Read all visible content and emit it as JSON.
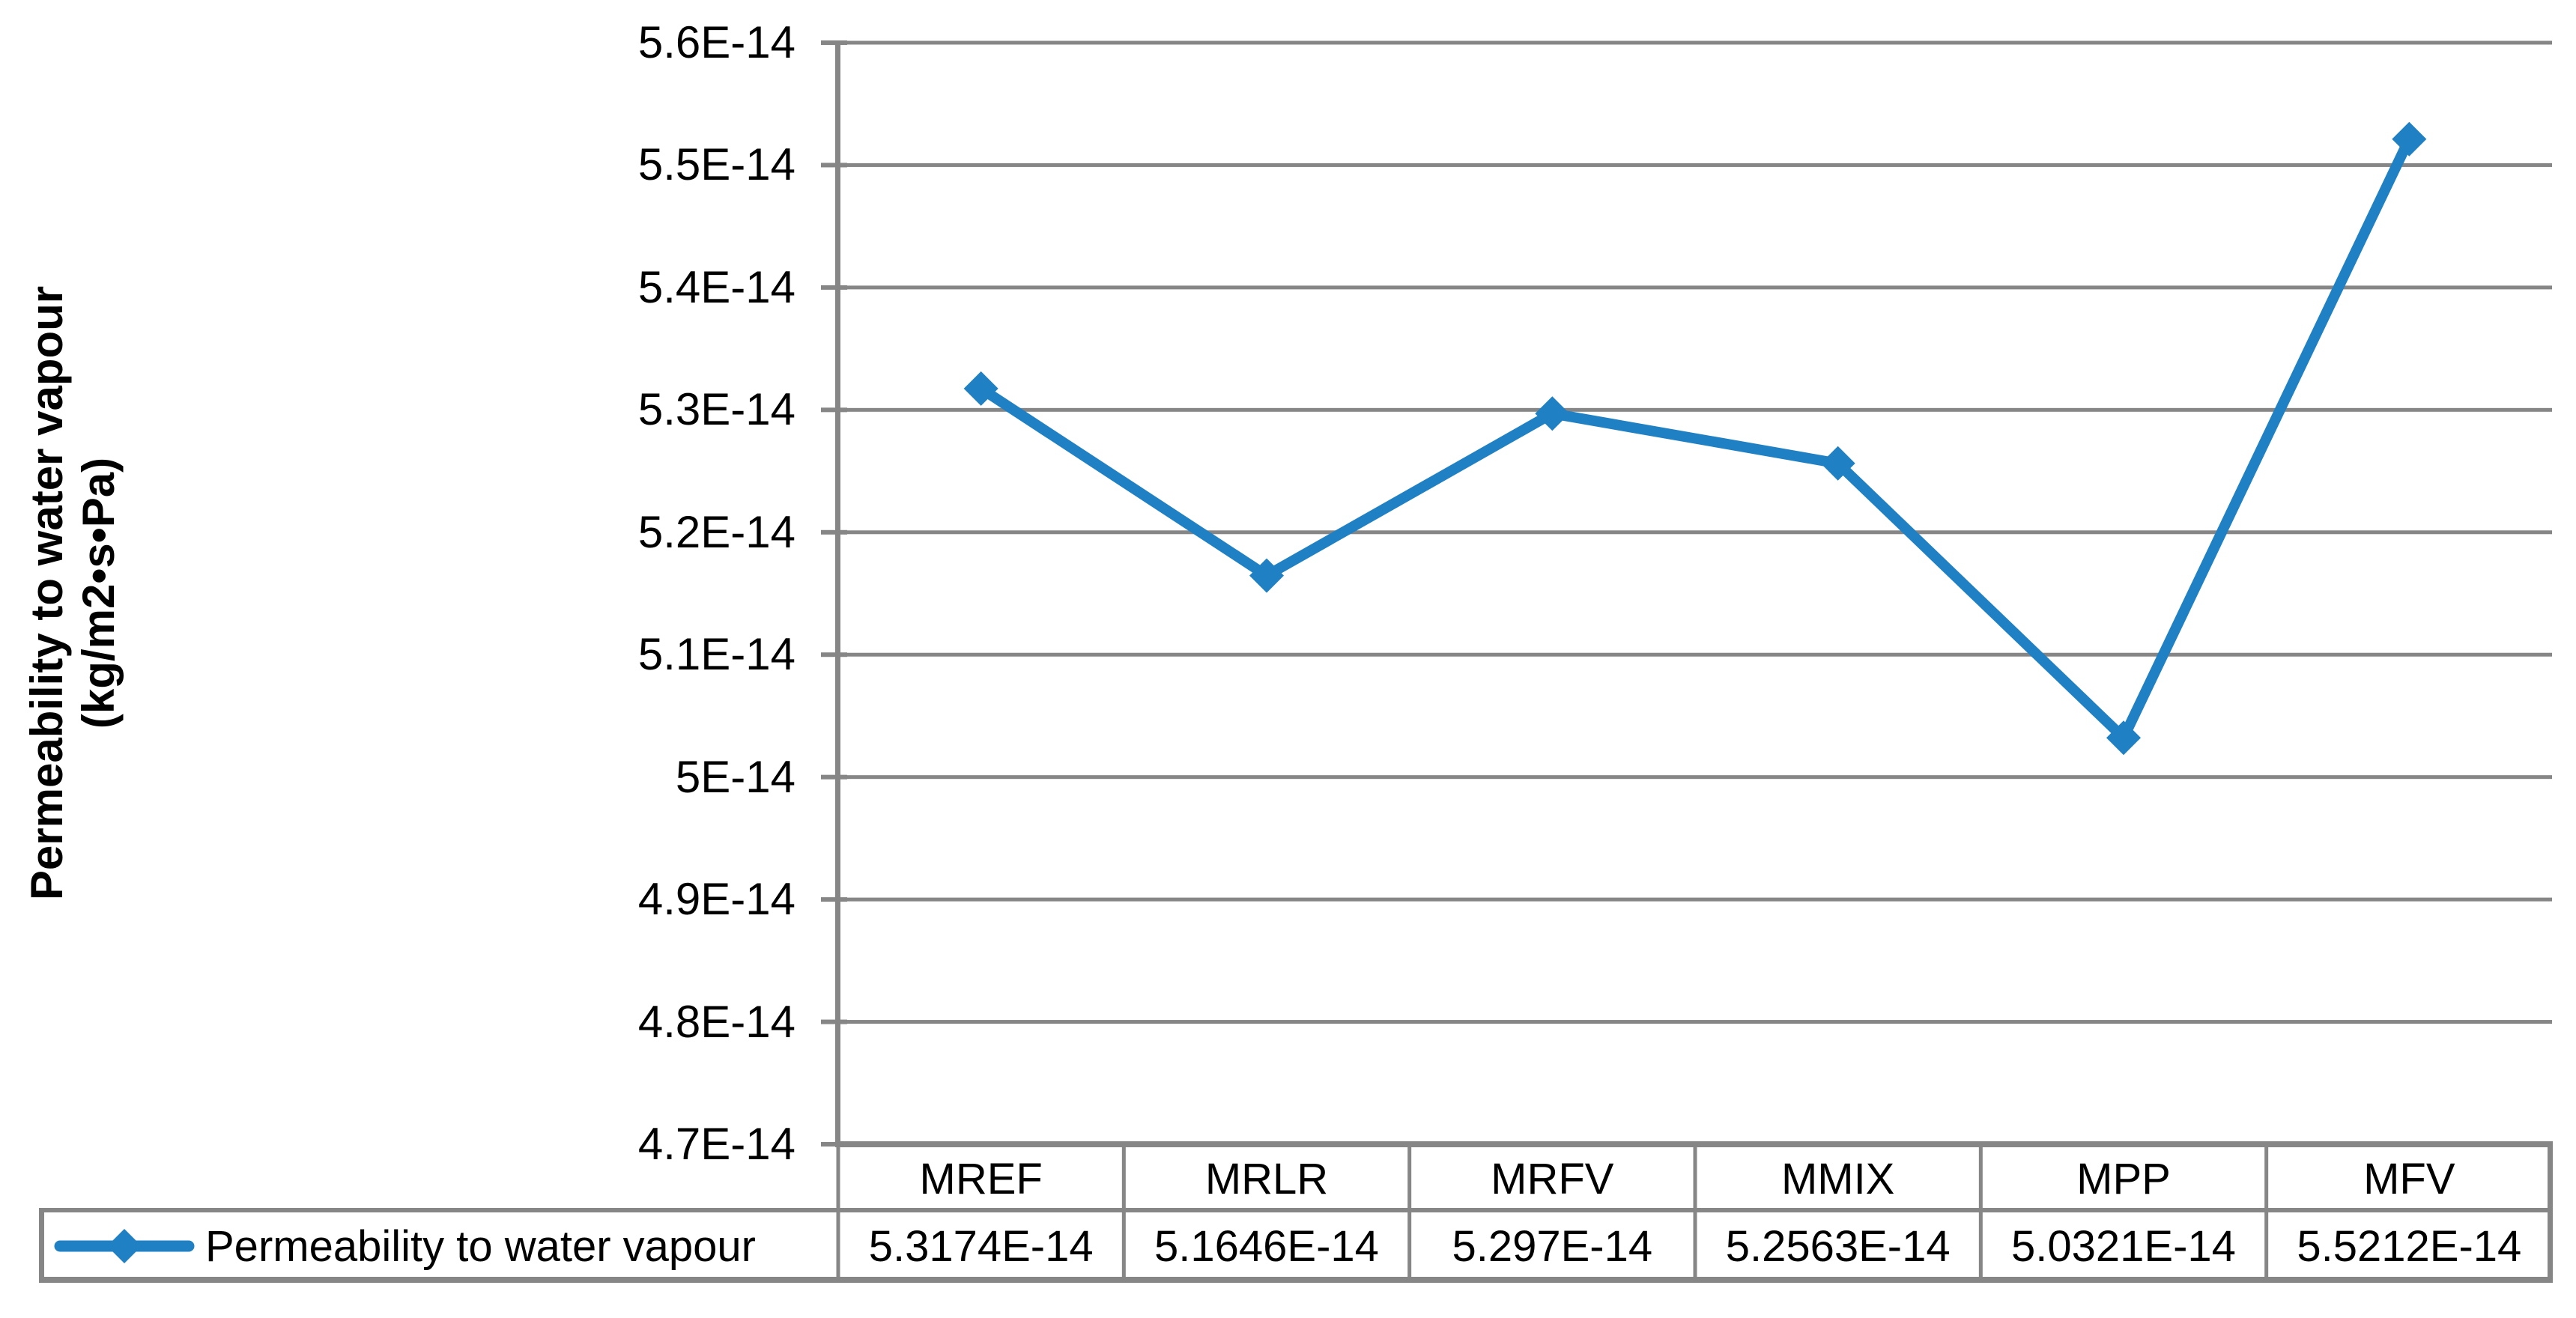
{
  "chart_data": {
    "type": "line",
    "title": "",
    "categories": [
      "MREF",
      "MRLR",
      "MRFV",
      "MMIX",
      "MPP",
      "MFV"
    ],
    "series": [
      {
        "name": "Permeability to water vapour",
        "values": [
          5.3174e-14,
          5.1646e-14,
          5.297e-14,
          5.2563e-14,
          5.0321e-14,
          5.5212e-14
        ],
        "values_display": [
          "5.3174E-14",
          "5.1646E-14",
          "5.297E-14",
          "5.2563E-14",
          "5.0321E-14",
          "5.5212E-14"
        ],
        "color": "#1F80C4",
        "marker": "diamond"
      }
    ],
    "xlabel": "",
    "ylabel_line1": "Permeability to water vapour",
    "ylabel_line2": "(kg/m2•s•Pa)",
    "ylim": [
      4.7e-14,
      5.6e-14
    ],
    "y_tick_labels": [
      "5.6E-14",
      "5.5E-14",
      "5.4E-14",
      "5.3E-14",
      "5.2E-14",
      "5.1E-14",
      "5E-14",
      "4.9E-14",
      "4.8E-14",
      "4.7E-14"
    ],
    "grid": "horizontal",
    "grid_color": "#868686",
    "axis_color": "#868686",
    "legend_position": "bottom data table"
  }
}
